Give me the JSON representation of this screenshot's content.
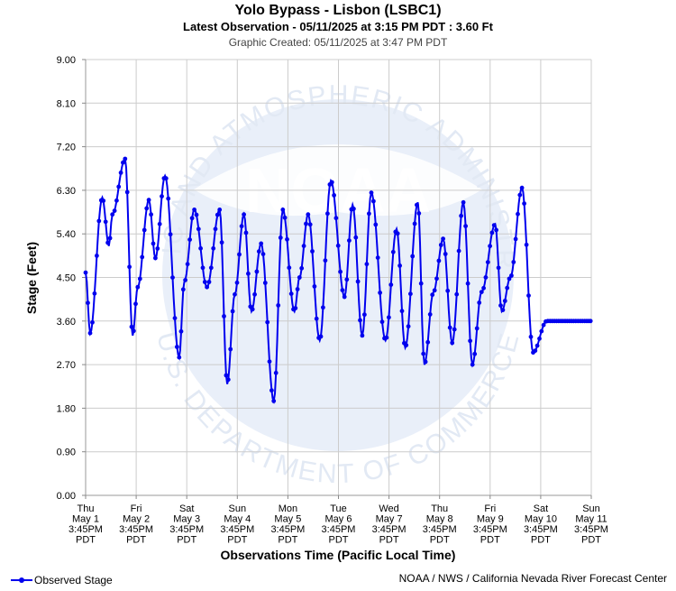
{
  "header": {
    "title": "Yolo Bypass - Lisbon (LSBC1)",
    "latest": "Latest Observation - 05/11/2025 at 3:15 PM PDT : 3.60 Ft",
    "created": "Graphic Created: 05/11/2025 at 3:47 PM PDT"
  },
  "footer": {
    "legend_label": "Observed Stage",
    "credit": "NOAA / NWS / California Nevada River Forecast Center"
  },
  "watermark": {
    "top_text": "OCEANIC AND ATMOSPHERIC ADMINISTRATION",
    "bottom_text": "U.S. DEPARTMENT OF COMMERCE",
    "logo_text": "NOAA"
  },
  "colors": {
    "series": "#0000ee",
    "grid": "#cccccc",
    "watermark": "#e4ecf8"
  },
  "chart_data": {
    "type": "line",
    "title": "Yolo Bypass - Lisbon (LSBC1)",
    "xlabel": "Observations Time (Pacific Local Time)",
    "ylabel": "Stage (Feet)",
    "ylim": [
      0,
      9
    ],
    "xlim": [
      0,
      10
    ],
    "x_unit": "days since Thu May 1 3:45PM PDT",
    "grid": true,
    "legend_position": "bottom-left",
    "y_ticks": [
      "0.00",
      "0.90",
      "1.80",
      "2.70",
      "3.60",
      "4.50",
      "5.40",
      "6.30",
      "7.20",
      "8.10",
      "9.00"
    ],
    "x_ticks": [
      [
        "Thu",
        "May 1",
        "3:45PM",
        "PDT"
      ],
      [
        "Fri",
        "May 2",
        "3:45PM",
        "PDT"
      ],
      [
        "Sat",
        "May 3",
        "3:45PM",
        "PDT"
      ],
      [
        "Sun",
        "May 4",
        "3:45PM",
        "PDT"
      ],
      [
        "Mon",
        "May 5",
        "3:45PM",
        "PDT"
      ],
      [
        "Tue",
        "May 6",
        "3:45PM",
        "PDT"
      ],
      [
        "Wed",
        "May 7",
        "3:45PM",
        "PDT"
      ],
      [
        "Thu",
        "May 8",
        "3:45PM",
        "PDT"
      ],
      [
        "Fri",
        "May 9",
        "3:45PM",
        "PDT"
      ],
      [
        "Sat",
        "May 10",
        "3:45PM",
        "PDT"
      ],
      [
        "Sun",
        "May 11",
        "3:45PM",
        "PDT"
      ]
    ],
    "series": [
      {
        "name": "Observed Stage",
        "x": [
          0.0,
          0.09,
          0.33,
          0.46,
          0.53,
          0.78,
          0.93,
          1.03,
          1.25,
          1.38,
          1.57,
          1.85,
          1.95,
          2.15,
          2.4,
          2.65,
          2.8,
          2.95,
          3.13,
          3.28,
          3.47,
          3.72,
          3.9,
          4.13,
          4.23,
          4.4,
          4.63,
          4.85,
          5.12,
          5.28,
          5.47,
          5.65,
          5.93,
          6.15,
          6.32,
          6.57,
          6.7,
          6.88,
          7.07,
          7.25,
          7.47,
          7.65,
          7.83,
          8.1,
          8.23,
          8.4,
          8.63,
          8.85,
          9.12,
          9.25,
          9.42,
          9.65,
          9.87,
          9.97,
          10.0
        ],
        "values": [
          4.6,
          3.35,
          6.15,
          5.15,
          5.8,
          6.95,
          3.3,
          4.3,
          6.1,
          4.9,
          6.6,
          2.85,
          4.4,
          5.9,
          4.3,
          5.9,
          2.3,
          4.15,
          5.8,
          3.8,
          5.2,
          1.95,
          5.9,
          3.8,
          4.5,
          5.8,
          3.2,
          6.5,
          4.1,
          6.0,
          3.3,
          6.25,
          3.2,
          5.5,
          3.05,
          6.05,
          2.7,
          4.2,
          5.3,
          3.15,
          6.05,
          2.7,
          4.2,
          5.6,
          3.8,
          4.5,
          6.35,
          2.95,
          3.6,
          3.6,
          3.6,
          3.6,
          3.6,
          3.6,
          3.6
        ]
      }
    ]
  }
}
